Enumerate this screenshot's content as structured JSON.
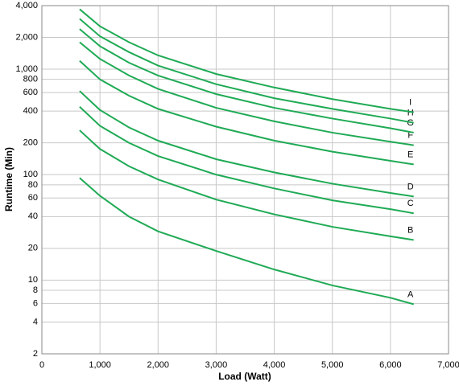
{
  "chart_data": {
    "type": "line",
    "x_label": "Load (Watt)",
    "y_label": "Runtime (Min)",
    "x": [
      650,
      1000,
      1500,
      2000,
      3000,
      4000,
      5000,
      6000,
      6400
    ],
    "series": [
      {
        "name": "A",
        "color": "#1faa55",
        "values": [
          93,
          63,
          40,
          29,
          18.9,
          12.6,
          8.9,
          6.8,
          5.9
        ]
      },
      {
        "name": "B",
        "color": "#1faa55",
        "values": [
          263,
          175,
          120,
          90,
          58,
          42,
          32,
          26,
          24
        ]
      },
      {
        "name": "C",
        "color": "#1faa55",
        "values": [
          440,
          290,
          200,
          150,
          100,
          74,
          57,
          47,
          43
        ]
      },
      {
        "name": "D",
        "color": "#1faa55",
        "values": [
          620,
          410,
          280,
          210,
          140,
          105,
          82,
          67,
          62
        ]
      },
      {
        "name": "E",
        "color": "#1faa55",
        "values": [
          1200,
          800,
          560,
          420,
          285,
          210,
          165,
          135,
          125
        ]
      },
      {
        "name": "F",
        "color": "#1faa55",
        "values": [
          1800,
          1250,
          870,
          650,
          430,
          320,
          250,
          205,
          190
        ]
      },
      {
        "name": "G",
        "color": "#1faa55",
        "values": [
          2400,
          1650,
          1150,
          870,
          580,
          430,
          340,
          275,
          250
        ]
      },
      {
        "name": "H",
        "color": "#1faa55",
        "values": [
          3000,
          2050,
          1450,
          1080,
          720,
          530,
          420,
          340,
          310
        ]
      },
      {
        "name": "I",
        "color": "#1faa55",
        "values": [
          3700,
          2550,
          1800,
          1350,
          900,
          670,
          520,
          420,
          390
        ]
      }
    ],
    "xlim": [
      0,
      7000
    ],
    "xticks": [
      0,
      {
        "value": 1000,
        "label": "1,000"
      },
      {
        "value": 2000,
        "label": "2,000"
      },
      {
        "value": 3000,
        "label": "3,000"
      },
      {
        "value": 4000,
        "label": "4,000"
      },
      {
        "value": 5000,
        "label": "5,000"
      },
      {
        "value": 6000,
        "label": "6,000"
      },
      {
        "value": 7000,
        "label": "7,000"
      }
    ],
    "ylim": [
      2,
      4000
    ],
    "yscale": "log",
    "yticks": [
      2,
      4,
      6,
      8,
      10,
      20,
      40,
      60,
      80,
      100,
      200,
      400,
      600,
      800,
      {
        "value": 1000,
        "label": "1,000"
      },
      {
        "value": 2000,
        "label": "2,000"
      },
      {
        "value": 4000,
        "label": "4,000"
      }
    ],
    "grid": true
  }
}
